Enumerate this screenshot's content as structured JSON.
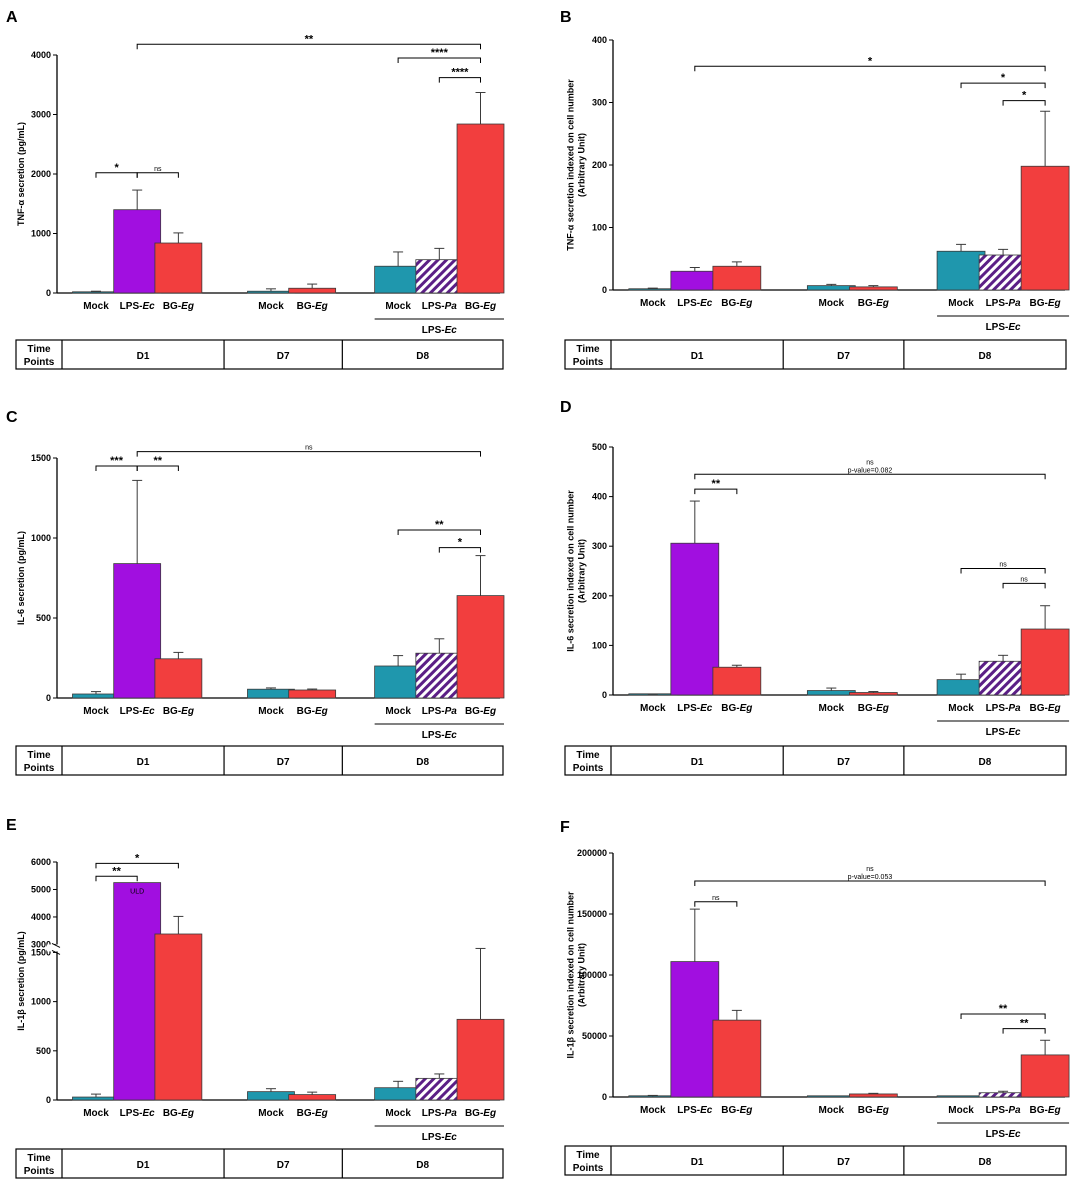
{
  "figure_title": "",
  "colors": {
    "mock": "#1f97ad",
    "lps_ec": "#a10fe0",
    "bg_eg": "#f23e3e",
    "lps_pa_stripe": "#5b1f86",
    "axis": "#000000"
  },
  "common": {
    "time_points_line1": "Time",
    "time_points_line2": "Points",
    "days": [
      "D1",
      "D7",
      "D8"
    ],
    "lps_group_prefix": "LPS-",
    "lps_group_italic": "Ec"
  },
  "chart_data": [
    {
      "panel": "A",
      "type": "bar",
      "ylabel_lines": [
        "TNF-α secretion (pg/mL)"
      ],
      "ylim": [
        0,
        4000
      ],
      "yticks": [
        "0",
        "1000",
        "2000",
        "3000",
        "4000"
      ],
      "ytick_values": [
        0,
        1000,
        2000,
        3000,
        4000
      ],
      "bars": [
        {
          "group": "D1",
          "label": "Mock",
          "italic": "",
          "color": "mock",
          "value": 20,
          "error": 10
        },
        {
          "group": "D1",
          "label": "LPS-",
          "italic": "Ec",
          "color": "lps_ec",
          "value": 1400,
          "error": 330
        },
        {
          "group": "D1",
          "label": "BG-",
          "italic": "Eg",
          "color": "bg_eg",
          "value": 840,
          "error": 170
        },
        {
          "group": "D7",
          "label": "Mock",
          "italic": "",
          "color": "mock",
          "value": 30,
          "error": 40
        },
        {
          "group": "D7",
          "label": "BG-",
          "italic": "Eg",
          "color": "bg_eg",
          "value": 80,
          "error": 70
        },
        {
          "group": "D8",
          "label": "Mock",
          "italic": "",
          "color": "mock",
          "value": 450,
          "error": 240
        },
        {
          "group": "D8",
          "label": "LPS-",
          "italic": "Pa",
          "color": "lps_pa",
          "value": 560,
          "error": 190
        },
        {
          "group": "D8",
          "label": "BG-",
          "italic": "Eg",
          "color": "bg_eg",
          "value": 2840,
          "error": 530
        }
      ],
      "annotations": [
        {
          "from": 1,
          "to": 7,
          "value": 4180,
          "text": "**",
          "drop": true
        },
        {
          "from": 5,
          "to": 7,
          "value": 3950,
          "text": "****",
          "drop": true
        },
        {
          "from": 6,
          "to": 7,
          "value": 3620,
          "text": "****",
          "drop": true
        },
        {
          "from": 0,
          "to": 1,
          "value": 2020,
          "text": "*",
          "drop": true
        },
        {
          "from": 1,
          "to": 2,
          "value": 2020,
          "text": "ns",
          "drop": true
        }
      ],
      "axis_break": false,
      "uld_text": ""
    },
    {
      "panel": "B",
      "type": "bar",
      "ylabel_lines": [
        "TNF-α secretion indexed on cell number",
        "(Arbitrary Unit)"
      ],
      "ylim": [
        0,
        400
      ],
      "yticks": [
        "0",
        "100",
        "200",
        "300",
        "400"
      ],
      "ytick_values": [
        0,
        100,
        200,
        300,
        400
      ],
      "bars": [
        {
          "group": "D1",
          "label": "Mock",
          "italic": "",
          "color": "mock",
          "value": 2,
          "error": 1
        },
        {
          "group": "D1",
          "label": "LPS-",
          "italic": "Ec",
          "color": "lps_ec",
          "value": 30,
          "error": 6
        },
        {
          "group": "D1",
          "label": "BG-",
          "italic": "Eg",
          "color": "bg_eg",
          "value": 38,
          "error": 7
        },
        {
          "group": "D7",
          "label": "Mock",
          "italic": "",
          "color": "mock",
          "value": 7,
          "error": 2
        },
        {
          "group": "D7",
          "label": "BG-",
          "italic": "Eg",
          "color": "bg_eg",
          "value": 5,
          "error": 2
        },
        {
          "group": "D8",
          "label": "Mock",
          "italic": "",
          "color": "mock",
          "value": 62,
          "error": 11
        },
        {
          "group": "D8",
          "label": "LPS-",
          "italic": "Pa",
          "color": "lps_pa",
          "value": 56,
          "error": 9
        },
        {
          "group": "D8",
          "label": "BG-",
          "italic": "Eg",
          "color": "bg_eg",
          "value": 198,
          "error": 88
        }
      ],
      "annotations": [
        {
          "from": 1,
          "to": 7,
          "value": 358,
          "text": "*",
          "drop": true
        },
        {
          "from": 5,
          "to": 7,
          "value": 331,
          "text": "*",
          "drop": true
        },
        {
          "from": 6,
          "to": 7,
          "value": 303,
          "text": "*",
          "drop": true
        }
      ],
      "axis_break": false,
      "uld_text": ""
    },
    {
      "panel": "C",
      "type": "bar",
      "ylabel_lines": [
        "IL-6 secretion (pg/mL)"
      ],
      "ylim": [
        0,
        1500
      ],
      "yticks": [
        "0",
        "500",
        "1000",
        "1500"
      ],
      "ytick_values": [
        0,
        500,
        1000,
        1500
      ],
      "bars": [
        {
          "group": "D1",
          "label": "Mock",
          "italic": "",
          "color": "mock",
          "value": 25,
          "error": 15
        },
        {
          "group": "D1",
          "label": "LPS-",
          "italic": "Ec",
          "color": "lps_ec",
          "value": 840,
          "error": 520
        },
        {
          "group": "D1",
          "label": "BG-",
          "italic": "Eg",
          "color": "bg_eg",
          "value": 245,
          "error": 40
        },
        {
          "group": "D7",
          "label": "Mock",
          "italic": "",
          "color": "mock",
          "value": 55,
          "error": 8
        },
        {
          "group": "D7",
          "label": "BG-",
          "italic": "Eg",
          "color": "bg_eg",
          "value": 50,
          "error": 6
        },
        {
          "group": "D8",
          "label": "Mock",
          "italic": "",
          "color": "mock",
          "value": 200,
          "error": 65
        },
        {
          "group": "D8",
          "label": "LPS-",
          "italic": "Pa",
          "color": "lps_pa",
          "value": 280,
          "error": 90
        },
        {
          "group": "D8",
          "label": "BG-",
          "italic": "Eg",
          "color": "bg_eg",
          "value": 640,
          "error": 250
        }
      ],
      "annotations": [
        {
          "from": 0,
          "to": 1,
          "value": 1450,
          "text": "***",
          "drop": true
        },
        {
          "from": 1,
          "to": 2,
          "value": 1450,
          "text": "**",
          "drop": true
        },
        {
          "from": 1,
          "to": 7,
          "value": 1540,
          "text": "ns",
          "drop": true
        },
        {
          "from": 5,
          "to": 7,
          "value": 1050,
          "text": "**",
          "drop": true
        },
        {
          "from": 6,
          "to": 7,
          "value": 940,
          "text": "*",
          "drop": true
        }
      ],
      "axis_break": false,
      "uld_text": ""
    },
    {
      "panel": "D",
      "type": "bar",
      "ylabel_lines": [
        "IL-6 secretion indexed on cell number",
        "(Arbitrary Unit)"
      ],
      "ylim": [
        0,
        500
      ],
      "yticks": [
        "0",
        "100",
        "200",
        "300",
        "400",
        "500"
      ],
      "ytick_values": [
        0,
        100,
        200,
        300,
        400,
        500
      ],
      "bars": [
        {
          "group": "D1",
          "label": "Mock",
          "italic": "",
          "color": "mock",
          "value": 1,
          "error": 1
        },
        {
          "group": "D1",
          "label": "LPS-",
          "italic": "Ec",
          "color": "lps_ec",
          "value": 306,
          "error": 85
        },
        {
          "group": "D1",
          "label": "BG-",
          "italic": "Eg",
          "color": "bg_eg",
          "value": 56,
          "error": 4
        },
        {
          "group": "D7",
          "label": "Mock",
          "italic": "",
          "color": "mock",
          "value": 9,
          "error": 5
        },
        {
          "group": "D7",
          "label": "BG-",
          "italic": "Eg",
          "color": "bg_eg",
          "value": 5,
          "error": 2
        },
        {
          "group": "D8",
          "label": "Mock",
          "italic": "",
          "color": "mock",
          "value": 31,
          "error": 11
        },
        {
          "group": "D8",
          "label": "LPS-",
          "italic": "Pa",
          "color": "lps_pa",
          "value": 68,
          "error": 12
        },
        {
          "group": "D8",
          "label": "BG-",
          "italic": "Eg",
          "color": "bg_eg",
          "value": 133,
          "error": 47
        }
      ],
      "annotations": [
        {
          "from": 1,
          "to": 7,
          "value": 445,
          "text": "ns",
          "text2": "p-value=0.082",
          "drop": true
        },
        {
          "from": 1,
          "to": 2,
          "value": 415,
          "text": "**",
          "drop": true
        },
        {
          "from": 5,
          "to": 7,
          "value": 255,
          "text": "ns",
          "drop": true
        },
        {
          "from": 6,
          "to": 7,
          "value": 225,
          "text": "ns",
          "drop": true
        }
      ],
      "axis_break": false,
      "uld_text": ""
    },
    {
      "panel": "E",
      "type": "bar",
      "ylabel_lines": [
        "IL-1β secretion (pg/mL)"
      ],
      "ylim": [
        0,
        6000
      ],
      "axis_break": true,
      "break_low_max": 1500,
      "break_high_min": 3000,
      "break_high_max": 6000,
      "yticks": [
        "0",
        "500",
        "1000",
        "1500",
        "3000",
        "4000",
        "5000",
        "6000"
      ],
      "ytick_values": [
        0,
        500,
        1000,
        1500,
        3000,
        4000,
        5000,
        6000
      ],
      "bars": [
        {
          "group": "D1",
          "label": "Mock",
          "italic": "",
          "color": "mock",
          "value": 30,
          "error": 30
        },
        {
          "group": "D1",
          "label": "LPS-",
          "italic": "Ec",
          "color": "lps_ec",
          "value": 5250,
          "error": 0
        },
        {
          "group": "D1",
          "label": "BG-",
          "italic": "Eg",
          "color": "bg_eg",
          "value": 3380,
          "error": 640
        },
        {
          "group": "D7",
          "label": "Mock",
          "italic": "",
          "color": "mock",
          "value": 85,
          "error": 30
        },
        {
          "group": "D7",
          "label": "BG-",
          "italic": "Eg",
          "color": "bg_eg",
          "value": 55,
          "error": 25
        },
        {
          "group": "D8",
          "label": "Mock",
          "italic": "",
          "color": "mock",
          "value": 125,
          "error": 65
        },
        {
          "group": "D8",
          "label": "LPS-",
          "italic": "Pa",
          "color": "lps_pa",
          "value": 220,
          "error": 45
        },
        {
          "group": "D8",
          "label": "BG-",
          "italic": "Eg",
          "color": "bg_eg",
          "value": 820,
          "error": 690
        }
      ],
      "annotations": [
        {
          "from": 0,
          "to": 2,
          "value": 5950,
          "text": "*",
          "drop": true
        },
        {
          "from": 0,
          "to": 1,
          "value": 5480,
          "text": "**",
          "drop": true
        }
      ],
      "uld_text": "ULD"
    },
    {
      "panel": "F",
      "type": "bar",
      "ylabel_lines": [
        "IL-1β secretion indexed on cell number",
        "(Arbitrary Unit)"
      ],
      "ylim": [
        0,
        200000
      ],
      "yticks": [
        "0",
        "50000",
        "100000",
        "150000",
        "200000"
      ],
      "ytick_values": [
        0,
        50000,
        100000,
        150000,
        200000
      ],
      "bars": [
        {
          "group": "D1",
          "label": "Mock",
          "italic": "",
          "color": "mock",
          "value": 500,
          "error": 800
        },
        {
          "group": "D1",
          "label": "LPS-",
          "italic": "Ec",
          "color": "lps_ec",
          "value": 111000,
          "error": 43000
        },
        {
          "group": "D1",
          "label": "BG-",
          "italic": "Eg",
          "color": "bg_eg",
          "value": 63000,
          "error": 8000
        },
        {
          "group": "D7",
          "label": "Mock",
          "italic": "",
          "color": "mock",
          "value": 0,
          "error": 0
        },
        {
          "group": "D7",
          "label": "BG-",
          "italic": "Eg",
          "color": "bg_eg",
          "value": 2500,
          "error": 500
        },
        {
          "group": "D8",
          "label": "Mock",
          "italic": "",
          "color": "mock",
          "value": 0,
          "error": 0
        },
        {
          "group": "D8",
          "label": "LPS-",
          "italic": "Pa",
          "color": "lps_pa",
          "value": 3500,
          "error": 1200
        },
        {
          "group": "D8",
          "label": "BG-",
          "italic": "Eg",
          "color": "bg_eg",
          "value": 34500,
          "error": 12000
        }
      ],
      "annotations": [
        {
          "from": 1,
          "to": 7,
          "value": 177000,
          "text": "ns",
          "text2": "p-value=0.053",
          "drop": true
        },
        {
          "from": 1,
          "to": 2,
          "value": 160000,
          "text": "ns",
          "drop": true
        },
        {
          "from": 5,
          "to": 7,
          "value": 68000,
          "text": "**",
          "drop": true
        },
        {
          "from": 6,
          "to": 7,
          "value": 56000,
          "text": "**",
          "drop": true
        }
      ],
      "axis_break": false,
      "uld_text": ""
    }
  ]
}
